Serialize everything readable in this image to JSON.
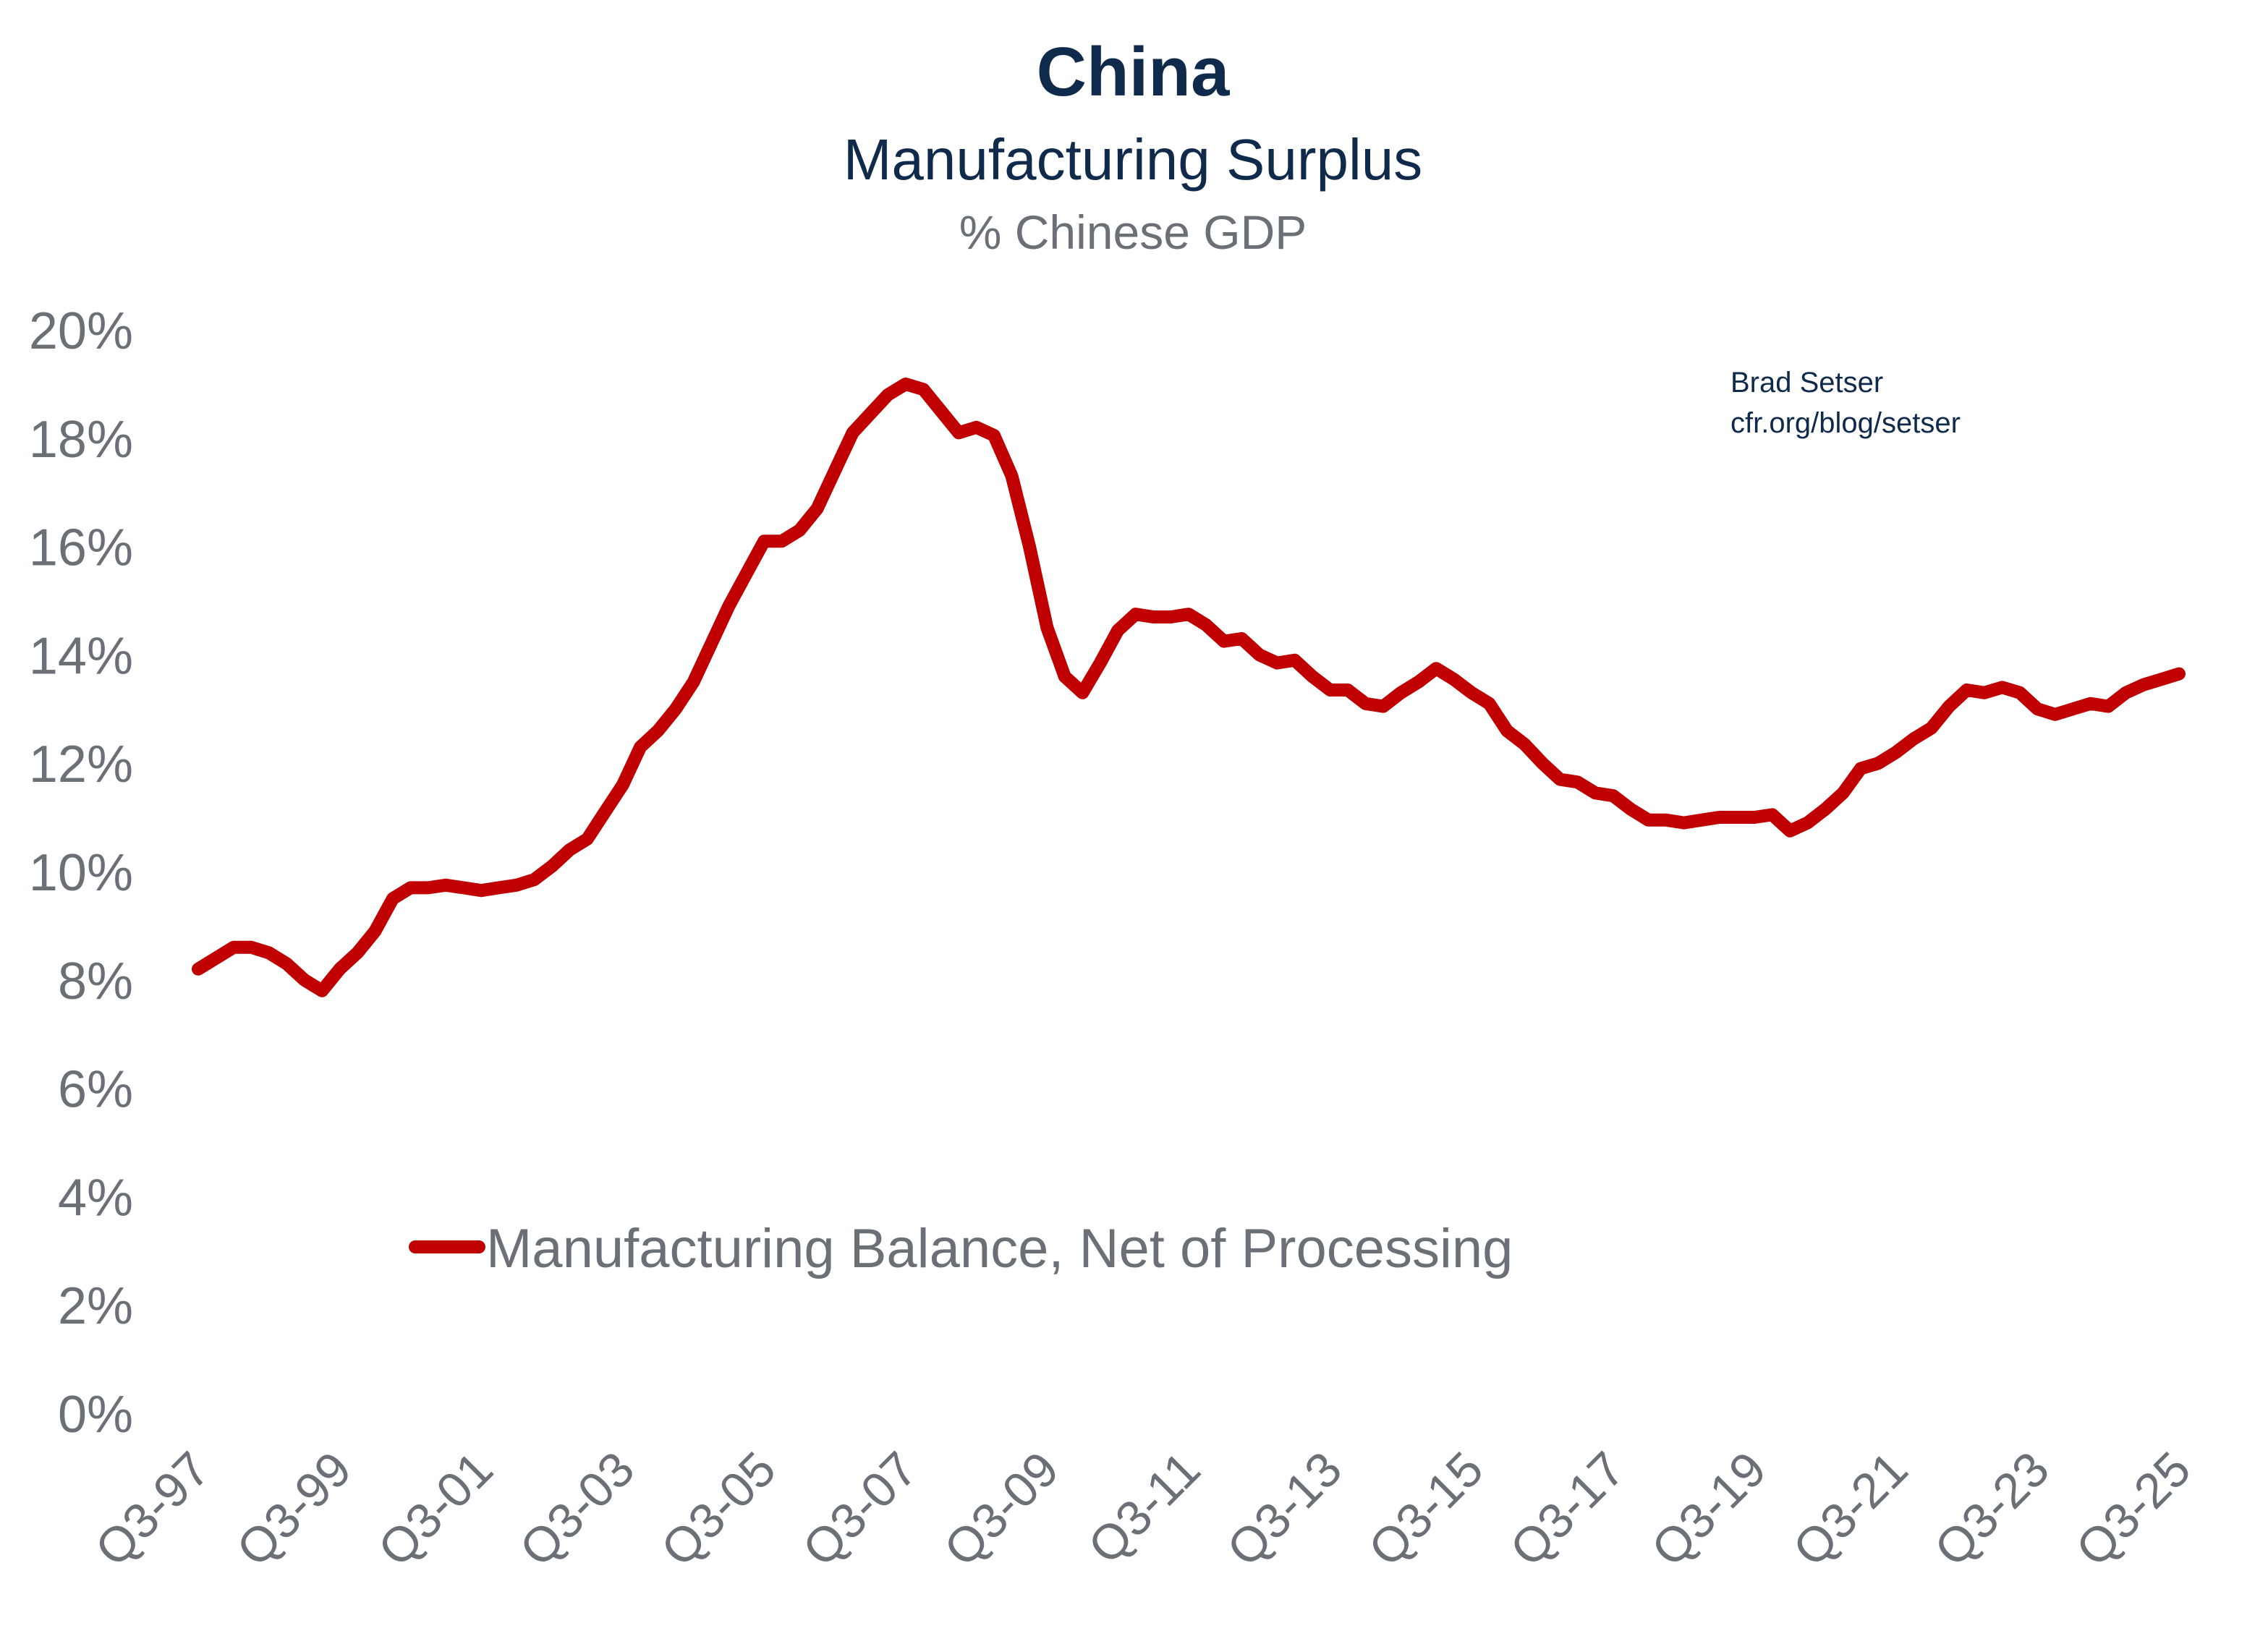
{
  "chart_data": {
    "type": "line",
    "title": "China",
    "subtitle": "Manufacturing Surplus",
    "ylabel": "% Chinese GDP",
    "xlabel": "",
    "x_start": "Q3-97",
    "x_end": "Q3-25",
    "x_frequency": "quarterly",
    "x_tick_labels": [
      "Q3-97",
      "Q3-99",
      "Q3-01",
      "Q3-03",
      "Q3-05",
      "Q3-07",
      "Q3-09",
      "Q3-11",
      "Q3-13",
      "Q3-15",
      "Q3-17",
      "Q3-19",
      "Q3-21",
      "Q3-23",
      "Q3-25"
    ],
    "y_tick_labels": [
      "0%",
      "2%",
      "4%",
      "6%",
      "8%",
      "10%",
      "12%",
      "14%",
      "16%",
      "18%",
      "20%"
    ],
    "ylim": [
      0,
      20
    ],
    "grid": false,
    "legend_position": "lower-center",
    "annotation": [
      "Brad Setser",
      "cfr.org/blog/setser"
    ],
    "series": [
      {
        "name": "Manufacturing Balance, Net of Processing",
        "color": "#c00000",
        "values": [
          8.2,
          8.4,
          8.6,
          8.6,
          8.5,
          8.3,
          8.0,
          7.8,
          8.2,
          8.5,
          8.9,
          9.5,
          9.7,
          9.7,
          9.75,
          9.7,
          9.65,
          9.7,
          9.75,
          9.85,
          10.1,
          10.4,
          10.6,
          11.1,
          11.6,
          12.3,
          12.6,
          13.0,
          13.5,
          14.2,
          14.9,
          15.5,
          16.1,
          16.1,
          16.3,
          16.7,
          17.4,
          18.1,
          18.45,
          18.8,
          19.0,
          18.9,
          18.5,
          18.1,
          18.2,
          18.05,
          17.3,
          16.0,
          14.5,
          13.6,
          13.3,
          13.85,
          14.45,
          14.75,
          14.7,
          14.7,
          14.75,
          14.55,
          14.25,
          14.3,
          14.0,
          13.85,
          13.9,
          13.6,
          13.35,
          13.35,
          13.1,
          13.05,
          13.3,
          13.5,
          13.75,
          13.55,
          13.3,
          13.1,
          12.6,
          12.35,
          12.0,
          11.7,
          11.65,
          11.45,
          11.4,
          11.15,
          10.95,
          10.95,
          10.9,
          10.95,
          11.0,
          11.0,
          11.0,
          11.05,
          10.75,
          10.9,
          11.15,
          11.45,
          11.9,
          12.0,
          12.2,
          12.45,
          12.65,
          13.05,
          13.35,
          13.3,
          13.4,
          13.3,
          13.0,
          12.9,
          13.0,
          13.1,
          13.05,
          13.3,
          13.45,
          13.55,
          13.65
        ]
      }
    ]
  }
}
